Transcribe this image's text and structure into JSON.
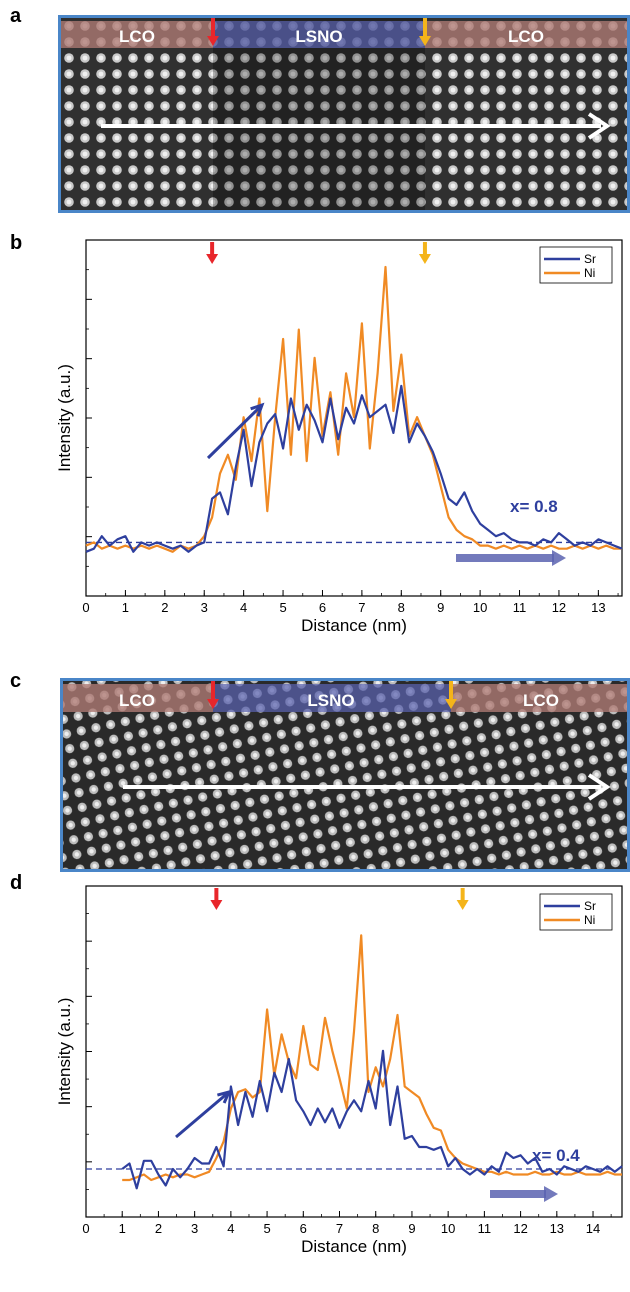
{
  "panels": {
    "a": {
      "letter": "a",
      "labels": [
        "LCO",
        "LSNO",
        "LCO"
      ]
    },
    "b": {
      "letter": "b"
    },
    "c": {
      "letter": "c",
      "labels": [
        "LCO",
        "LSNO",
        "LCO"
      ]
    },
    "d": {
      "letter": "d"
    }
  },
  "colors": {
    "sr": "#2e3f9e",
    "ni": "#f08a24",
    "red_marker": "#e8262b",
    "yellow_marker": "#f4b41a",
    "frame": "#4a86c8",
    "lco_band": "#b07b74",
    "lsno_band": "#5a63b0"
  },
  "chart_data": [
    {
      "type": "line",
      "panel": "b",
      "xlabel": "Distance (nm)",
      "ylabel": "Intensity (a.u.)",
      "xlim": [
        0,
        13.6
      ],
      "ylim": [
        0,
        1
      ],
      "xticks": [
        0,
        1,
        2,
        3,
        4,
        5,
        6,
        7,
        8,
        9,
        10,
        11,
        12,
        13
      ],
      "yticks_labeled": false,
      "grid": false,
      "legend_position": "top-right",
      "annotation": "x= 0.8",
      "interface_markers": [
        3.2,
        8.6
      ],
      "baseline_level": 0.12,
      "series": [
        {
          "name": "Sr",
          "color": "#2e3f9e",
          "x": [
            0,
            0.2,
            0.4,
            0.6,
            0.8,
            1.0,
            1.2,
            1.4,
            1.6,
            1.8,
            2.0,
            2.2,
            2.4,
            2.6,
            2.8,
            3.0,
            3.2,
            3.4,
            3.6,
            3.8,
            4.0,
            4.2,
            4.4,
            4.6,
            4.8,
            5.0,
            5.2,
            5.4,
            5.6,
            5.8,
            6.0,
            6.2,
            6.4,
            6.6,
            6.8,
            7.0,
            7.2,
            7.4,
            7.6,
            7.8,
            8.0,
            8.2,
            8.4,
            8.6,
            8.8,
            9.0,
            9.2,
            9.4,
            9.6,
            9.8,
            10.0,
            10.2,
            10.4,
            10.6,
            10.8,
            11.0,
            11.2,
            11.4,
            11.6,
            11.8,
            12.0,
            12.2,
            12.4,
            12.6,
            12.8,
            13.0,
            13.2,
            13.4,
            13.6
          ],
          "y": [
            0.09,
            0.1,
            0.14,
            0.11,
            0.13,
            0.14,
            0.09,
            0.12,
            0.11,
            0.12,
            0.11,
            0.1,
            0.11,
            0.09,
            0.11,
            0.12,
            0.26,
            0.28,
            0.21,
            0.36,
            0.48,
            0.3,
            0.44,
            0.5,
            0.53,
            0.42,
            0.58,
            0.48,
            0.56,
            0.51,
            0.44,
            0.58,
            0.45,
            0.55,
            0.5,
            0.59,
            0.52,
            0.54,
            0.56,
            0.47,
            0.62,
            0.44,
            0.5,
            0.46,
            0.41,
            0.34,
            0.26,
            0.24,
            0.28,
            0.22,
            0.18,
            0.16,
            0.14,
            0.15,
            0.13,
            0.12,
            0.12,
            0.11,
            0.13,
            0.12,
            0.15,
            0.13,
            0.11,
            0.12,
            0.11,
            0.13,
            0.12,
            0.11,
            0.1
          ]
        },
        {
          "name": "Ni",
          "color": "#f08a24",
          "x": [
            0,
            0.2,
            0.4,
            0.6,
            0.8,
            1.0,
            1.2,
            1.4,
            1.6,
            1.8,
            2.0,
            2.2,
            2.4,
            2.6,
            2.8,
            3.0,
            3.2,
            3.4,
            3.6,
            3.8,
            4.0,
            4.2,
            4.4,
            4.6,
            4.8,
            5.0,
            5.2,
            5.4,
            5.6,
            5.8,
            6.0,
            6.2,
            6.4,
            6.6,
            6.8,
            7.0,
            7.2,
            7.4,
            7.6,
            7.8,
            8.0,
            8.2,
            8.4,
            8.6,
            8.8,
            9.0,
            9.2,
            9.4,
            9.6,
            9.8,
            10.0,
            10.2,
            10.4,
            10.6,
            10.8,
            11.0,
            11.2,
            11.4,
            11.6,
            11.8,
            12.0,
            12.2,
            12.4,
            12.6,
            12.8,
            13.0,
            13.2,
            13.4,
            13.6
          ],
          "y": [
            0.11,
            0.12,
            0.1,
            0.11,
            0.1,
            0.11,
            0.1,
            0.11,
            0.1,
            0.11,
            0.1,
            0.09,
            0.11,
            0.1,
            0.11,
            0.14,
            0.2,
            0.34,
            0.4,
            0.32,
            0.52,
            0.38,
            0.58,
            0.22,
            0.52,
            0.77,
            0.4,
            0.8,
            0.38,
            0.71,
            0.46,
            0.6,
            0.4,
            0.66,
            0.52,
            0.82,
            0.42,
            0.66,
            1.0,
            0.54,
            0.72,
            0.46,
            0.52,
            0.46,
            0.4,
            0.3,
            0.2,
            0.16,
            0.14,
            0.13,
            0.11,
            0.11,
            0.1,
            0.11,
            0.1,
            0.11,
            0.1,
            0.11,
            0.1,
            0.11,
            0.1,
            0.1,
            0.11,
            0.1,
            0.11,
            0.1,
            0.11,
            0.1,
            0.1
          ]
        }
      ]
    },
    {
      "type": "line",
      "panel": "d",
      "xlabel": "Distance (nm)",
      "ylabel": "Intensity (a.u.)",
      "xlim": [
        0,
        14.8
      ],
      "ylim": [
        0,
        1
      ],
      "xticks": [
        0,
        1,
        2,
        3,
        4,
        5,
        6,
        7,
        8,
        9,
        10,
        11,
        12,
        13,
        14
      ],
      "yticks_labeled": false,
      "grid": false,
      "legend_position": "top-right",
      "annotation": "x= 0.4",
      "interface_markers": [
        3.6,
        10.4
      ],
      "baseline_level": 0.12,
      "series": [
        {
          "name": "Sr",
          "color": "#2e3f9e",
          "x": [
            1.0,
            1.2,
            1.4,
            1.6,
            1.8,
            2.0,
            2.2,
            2.4,
            2.6,
            2.8,
            3.0,
            3.2,
            3.4,
            3.6,
            3.8,
            4.0,
            4.2,
            4.4,
            4.6,
            4.8,
            5.0,
            5.2,
            5.4,
            5.6,
            5.8,
            6.0,
            6.2,
            6.4,
            6.6,
            6.8,
            7.0,
            7.2,
            7.4,
            7.6,
            7.8,
            8.0,
            8.2,
            8.4,
            8.6,
            8.8,
            9.0,
            9.2,
            9.4,
            9.6,
            9.8,
            10.0,
            10.2,
            10.4,
            10.6,
            10.8,
            11.0,
            11.2,
            11.4,
            11.6,
            11.8,
            12.0,
            12.2,
            12.4,
            12.6,
            12.8,
            13.0,
            13.2,
            13.4,
            13.6,
            13.8,
            14.0,
            14.2,
            14.4,
            14.6,
            14.8
          ],
          "y": [
            0.12,
            0.14,
            0.05,
            0.15,
            0.15,
            0.1,
            0.06,
            0.12,
            0.09,
            0.12,
            0.16,
            0.14,
            0.14,
            0.2,
            0.13,
            0.42,
            0.28,
            0.4,
            0.31,
            0.44,
            0.33,
            0.47,
            0.4,
            0.52,
            0.37,
            0.33,
            0.28,
            0.34,
            0.29,
            0.34,
            0.27,
            0.33,
            0.37,
            0.33,
            0.44,
            0.34,
            0.55,
            0.28,
            0.42,
            0.23,
            0.24,
            0.2,
            0.2,
            0.19,
            0.2,
            0.13,
            0.16,
            0.12,
            0.1,
            0.12,
            0.1,
            0.13,
            0.11,
            0.18,
            0.16,
            0.17,
            0.14,
            0.16,
            0.11,
            0.12,
            0.1,
            0.13,
            0.12,
            0.11,
            0.13,
            0.12,
            0.11,
            0.13,
            0.11,
            0.13
          ]
        },
        {
          "name": "Ni",
          "color": "#f08a24",
          "x": [
            1.0,
            1.2,
            1.4,
            1.6,
            1.8,
            2.0,
            2.2,
            2.4,
            2.6,
            2.8,
            3.0,
            3.2,
            3.4,
            3.6,
            3.8,
            4.0,
            4.2,
            4.4,
            4.6,
            4.8,
            5.0,
            5.2,
            5.4,
            5.6,
            5.8,
            6.0,
            6.2,
            6.4,
            6.6,
            6.8,
            7.0,
            7.2,
            7.4,
            7.6,
            7.8,
            8.0,
            8.2,
            8.4,
            8.6,
            8.8,
            9.0,
            9.2,
            9.4,
            9.6,
            9.8,
            10.0,
            10.2,
            10.4,
            10.6,
            10.8,
            11.0,
            11.2,
            11.4,
            11.6,
            11.8,
            12.0,
            12.2,
            12.4,
            12.6,
            12.8,
            13.0,
            13.2,
            13.4,
            13.6,
            13.8,
            14.0,
            14.2,
            14.4,
            14.6,
            14.8
          ],
          "y": [
            0.08,
            0.08,
            0.09,
            0.1,
            0.08,
            0.09,
            0.1,
            0.09,
            0.1,
            0.1,
            0.09,
            0.1,
            0.11,
            0.16,
            0.22,
            0.34,
            0.4,
            0.41,
            0.38,
            0.4,
            0.7,
            0.46,
            0.61,
            0.51,
            0.45,
            0.64,
            0.5,
            0.48,
            0.67,
            0.55,
            0.45,
            0.34,
            0.62,
            0.97,
            0.4,
            0.49,
            0.42,
            0.52,
            0.68,
            0.42,
            0.4,
            0.38,
            0.32,
            0.27,
            0.26,
            0.19,
            0.16,
            0.14,
            0.13,
            0.12,
            0.11,
            0.11,
            0.1,
            0.11,
            0.1,
            0.1,
            0.1,
            0.11,
            0.1,
            0.1,
            0.11,
            0.1,
            0.1,
            0.11,
            0.1,
            0.1,
            0.1,
            0.11,
            0.1,
            0.1
          ]
        }
      ]
    }
  ],
  "image_panels": [
    {
      "panel": "a",
      "boundaries_rel": [
        0.175,
        0.643
      ]
    },
    {
      "panel": "c",
      "boundaries_rel": [
        0.178,
        0.651
      ]
    }
  ]
}
